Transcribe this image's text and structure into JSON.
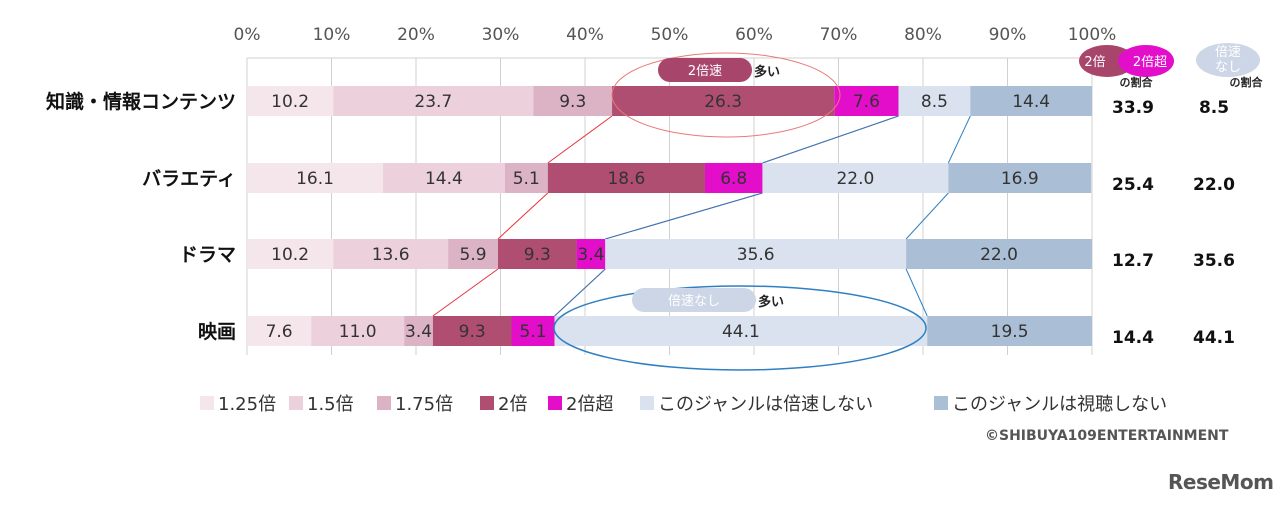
{
  "chart_data": {
    "type": "bar",
    "stacked": true,
    "orientation": "horizontal",
    "percent_axis": true,
    "xlim": [
      0,
      100
    ],
    "x_ticks": [
      "0%",
      "10%",
      "20%",
      "30%",
      "40%",
      "50%",
      "60%",
      "70%",
      "80%",
      "90%",
      "100%"
    ],
    "categories": [
      "知識・情報コンテンツ",
      "バラエティ",
      "ドラマ",
      "映画"
    ],
    "series": [
      {
        "name": "1.25倍",
        "color": "#f5e6ec",
        "values": [
          10.2,
          16.1,
          10.2,
          7.6
        ]
      },
      {
        "name": "1.5倍",
        "color": "#ecd0dc",
        "values": [
          23.7,
          14.4,
          13.6,
          11.0
        ]
      },
      {
        "name": "1.75倍",
        "color": "#dbb3c4",
        "values": [
          9.3,
          5.1,
          5.9,
          3.4
        ]
      },
      {
        "name": "2倍",
        "color": "#b04e72",
        "values": [
          26.3,
          18.6,
          9.3,
          9.3
        ]
      },
      {
        "name": "2倍超",
        "color": "#e20eca",
        "values": [
          7.6,
          6.8,
          3.4,
          5.1
        ]
      },
      {
        "name": "このジャンルは倍速しない",
        "color": "#d9e2ee",
        "values": [
          8.5,
          22.0,
          35.6,
          44.1
        ]
      },
      {
        "name": "このジャンルは視聴しない",
        "color": "#aabed6",
        "values": [
          14.4,
          16.9,
          22.0,
          19.5
        ]
      }
    ],
    "label_values": [
      [
        "10.2",
        "23.7",
        "9.3",
        "26.3",
        "7.6",
        "8.5",
        "14.4"
      ],
      [
        "16.1",
        "14.4",
        "5.1",
        "18.6",
        "6.8",
        "22.0",
        "16.9"
      ],
      [
        "10.2",
        "13.6",
        "5.9",
        "9.3",
        "3.4",
        "35.6",
        "22.0"
      ],
      [
        "7.6",
        "11.0",
        "3.4",
        "9.3",
        "5.1",
        "44.1",
        "19.5"
      ]
    ],
    "side_columns": [
      {
        "header": [
          "2倍",
          "&",
          "2倍超"
        ],
        "subheader": "の割合",
        "values": [
          "33.9",
          "25.4",
          "12.7",
          "14.4"
        ]
      },
      {
        "header": [
          "倍速",
          "なし"
        ],
        "subheader": "の割合",
        "values": [
          "8.5",
          "22.0",
          "35.6",
          "44.1"
        ]
      }
    ],
    "annotations": [
      {
        "badge": "2倍速",
        "text": "多い"
      },
      {
        "badge": "倍速なし",
        "text": "多い"
      }
    ],
    "grid": true,
    "legend_position": "bottom"
  },
  "colors": {
    "grid": "#d0d0d0",
    "red_line": "#e8333a",
    "blue_line": "#2f7fc2",
    "pink_ellipse": "#e87a7a",
    "blue_ellipse": "#2f7fc2",
    "badge_2x": "#a8456b",
    "badge_2x_plus": "#e20eca",
    "badge_none": "#ccd6e6"
  },
  "footer": {
    "copyright": "©SHIBUYA109ENTERTAINMENT",
    "logo": "ReseMom"
  }
}
